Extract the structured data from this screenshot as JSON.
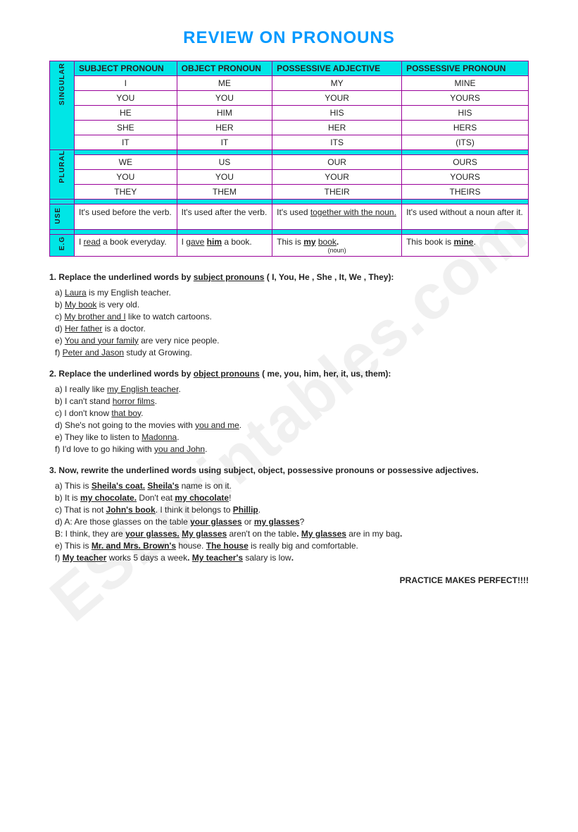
{
  "title": "REVIEW ON PRONOUNS",
  "watermark": "ESLprintables.com",
  "table": {
    "headers": [
      "SUBJECT PRONOUN",
      "OBJECT PRONOUN",
      "POSSESSIVE ADJECTIVE",
      "POSSESSIVE PRONOUN"
    ],
    "side": {
      "singular": "SINGULAR",
      "plural": "PLURAL",
      "use": "USE",
      "eg": "E.G"
    },
    "singular": [
      [
        "I",
        "ME",
        "MY",
        "MINE"
      ],
      [
        "YOU",
        "YOU",
        "YOUR",
        "YOURS"
      ],
      [
        "HE",
        "HIM",
        "HIS",
        "HIS"
      ],
      [
        "SHE",
        "HER",
        "HER",
        "HERS"
      ],
      [
        "IT",
        "IT",
        "ITS",
        "(ITS)"
      ]
    ],
    "plural": [
      [
        "WE",
        "US",
        "OUR",
        "OURS"
      ],
      [
        "YOU",
        "YOU",
        "YOUR",
        "YOURS"
      ],
      [
        "THEY",
        "THEM",
        "THEIR",
        "THEIRS"
      ]
    ],
    "use": [
      "It's used before the verb.",
      "It's used after the verb.",
      {
        "pre": "It's used ",
        "u": "together with the noun."
      },
      "It's used without a noun after it."
    ],
    "eg": [
      {
        "parts": [
          {
            "t": "I ",
            "s": ""
          },
          {
            "t": "read",
            "s": "u"
          },
          {
            "t": " a book everyday.",
            "s": ""
          }
        ]
      },
      {
        "parts": [
          {
            "t": "I ",
            "s": ""
          },
          {
            "t": "gave",
            "s": "u"
          },
          {
            "t": " ",
            "s": ""
          },
          {
            "t": "him",
            "s": "ub"
          },
          {
            "t": " a book.",
            "s": ""
          }
        ]
      },
      {
        "parts": [
          {
            "t": "This is ",
            "s": ""
          },
          {
            "t": "my",
            "s": "ub"
          },
          {
            "t": " ",
            "s": ""
          },
          {
            "t": "book",
            "s": "u"
          },
          {
            "t": ".",
            "s": "b"
          }
        ],
        "note": "(noun)"
      },
      {
        "parts": [
          {
            "t": "This book is ",
            "s": ""
          },
          {
            "t": "mine",
            "s": "ub"
          },
          {
            "t": ".",
            "s": ""
          }
        ]
      }
    ]
  },
  "q1": {
    "num": "1.",
    "text": "Replace the underlined words by ",
    "u": "subject pronouns",
    "after": " ( I, You, He , She , It, We , They):",
    "items": [
      {
        "l": "a)",
        "parts": [
          {
            "t": "Laura",
            "s": "u"
          },
          {
            "t": " is my English teacher.",
            "s": ""
          }
        ]
      },
      {
        "l": "b)",
        "parts": [
          {
            "t": "My book",
            "s": "u"
          },
          {
            "t": " is very old.",
            "s": ""
          }
        ]
      },
      {
        "l": "c)",
        "parts": [
          {
            "t": "My brother and I",
            "s": "u"
          },
          {
            "t": " like to watch cartoons.",
            "s": ""
          }
        ]
      },
      {
        "l": "d)",
        "parts": [
          {
            "t": "Her father",
            "s": "u"
          },
          {
            "t": " is a doctor.",
            "s": ""
          }
        ]
      },
      {
        "l": "e)",
        "parts": [
          {
            "t": "You and your family",
            "s": "u"
          },
          {
            "t": " are very nice people.",
            "s": ""
          }
        ]
      },
      {
        "l": "f)",
        "parts": [
          {
            "t": "Peter and Jason",
            "s": "u"
          },
          {
            "t": " study at Growing.",
            "s": ""
          }
        ]
      }
    ]
  },
  "q2": {
    "num": "2.",
    "text": "Replace the underlined words by ",
    "u": "object pronouns",
    "after": " ( me, you, him, her, it, us, them):",
    "items": [
      {
        "l": "a)",
        "parts": [
          {
            "t": " I really like ",
            "s": ""
          },
          {
            "t": "my English teacher",
            "s": "u"
          },
          {
            "t": ".",
            "s": ""
          }
        ]
      },
      {
        "l": "b)",
        "parts": [
          {
            "t": " I can't stand ",
            "s": ""
          },
          {
            "t": "horror films",
            "s": "u"
          },
          {
            "t": ".",
            "s": ""
          }
        ]
      },
      {
        "l": "c)",
        "parts": [
          {
            "t": " I don't know ",
            "s": ""
          },
          {
            "t": "that boy",
            "s": "u"
          },
          {
            "t": ".",
            "s": ""
          }
        ]
      },
      {
        "l": "d)",
        "parts": [
          {
            "t": " She's not going to the movies with ",
            "s": ""
          },
          {
            "t": "you and me",
            "s": "u"
          },
          {
            "t": ".",
            "s": ""
          }
        ]
      },
      {
        "l": "e)",
        "parts": [
          {
            "t": " They like to listen to ",
            "s": ""
          },
          {
            "t": "Madonna",
            "s": "u"
          },
          {
            "t": ".",
            "s": ""
          }
        ]
      },
      {
        "l": "f)",
        "parts": [
          {
            "t": " I'd love to go hiking with ",
            "s": ""
          },
          {
            "t": "you and John",
            "s": "u"
          },
          {
            "t": ".",
            "s": ""
          }
        ]
      }
    ]
  },
  "q3": {
    "num": "3.",
    "text": "Now, rewrite the underlined words using subject, object, possessive pronouns or possessive adjectives.",
    "items": [
      {
        "l": "a)",
        "parts": [
          {
            "t": "This is ",
            "s": ""
          },
          {
            "t": "Sheila's coat.",
            "s": "ub"
          },
          {
            "t": " ",
            "s": ""
          },
          {
            "t": "Sheila's",
            "s": "ub"
          },
          {
            "t": " name is on it.",
            "s": ""
          }
        ]
      },
      {
        "l": "b)",
        "parts": [
          {
            "t": " It is ",
            "s": ""
          },
          {
            "t": "my chocolate.",
            "s": "ub"
          },
          {
            "t": " Don't eat ",
            "s": ""
          },
          {
            "t": "my chocolate",
            "s": "ub"
          },
          {
            "t": "!",
            "s": ""
          }
        ]
      },
      {
        "l": "c)",
        "parts": [
          {
            "t": " That is not ",
            "s": ""
          },
          {
            "t": "John's book",
            "s": "ub"
          },
          {
            "t": ". I think it belongs to ",
            "s": ""
          },
          {
            "t": "Phillip",
            "s": "ub"
          },
          {
            "t": ".",
            "s": ""
          }
        ]
      },
      {
        "l": "d)",
        "parts": [
          {
            "t": "A: Are those glasses on the table ",
            "s": ""
          },
          {
            "t": "your glasses",
            "s": "ub"
          },
          {
            "t": " or ",
            "s": ""
          },
          {
            "t": "my glasses",
            "s": "ub"
          },
          {
            "t": "?",
            "s": ""
          }
        ]
      },
      {
        "l": "",
        "parts": [
          {
            "t": "    B: I think, they are ",
            "s": ""
          },
          {
            "t": "your glasses.",
            "s": "ub"
          },
          {
            "t": " ",
            "s": ""
          },
          {
            "t": "My glasses",
            "s": "ub"
          },
          {
            "t": " aren't on the table",
            "s": ""
          },
          {
            "t": ". ",
            "s": "b"
          },
          {
            "t": "My glasses",
            "s": "ub"
          },
          {
            "t": " are in my bag",
            "s": ""
          },
          {
            "t": ".",
            "s": "b"
          }
        ]
      },
      {
        "l": "e)",
        "parts": [
          {
            "t": "This is ",
            "s": ""
          },
          {
            "t": "Mr. and Mrs. Brown's",
            "s": "ub"
          },
          {
            "t": " house. ",
            "s": ""
          },
          {
            "t": "The house",
            "s": "ub"
          },
          {
            "t": " is really big and comfortable.",
            "s": ""
          }
        ]
      },
      {
        "l": "f)",
        "parts": [
          {
            "t": "My teacher",
            "s": "ub"
          },
          {
            "t": " works 5 days a week",
            "s": ""
          },
          {
            "t": ". ",
            "s": "b"
          },
          {
            "t": "My teacher's",
            "s": "ub"
          },
          {
            "t": " salary is low",
            "s": ""
          },
          {
            "t": ".",
            "s": "b"
          }
        ]
      }
    ]
  },
  "footer": "PRACTICE MAKES PERFECT!!!!"
}
